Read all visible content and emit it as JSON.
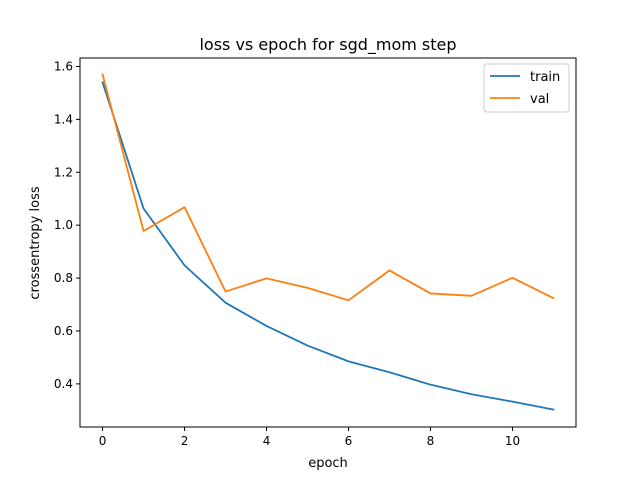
{
  "chart_data": {
    "type": "line",
    "title": "loss vs epoch for sgd_mom step",
    "xlabel": "epoch",
    "ylabel": "crossentropy loss",
    "x": [
      0,
      1,
      2,
      3,
      4,
      5,
      6,
      7,
      8,
      9,
      10,
      11
    ],
    "xlim": [
      -0.55,
      11.55
    ],
    "ylim": [
      0.237,
      1.632
    ],
    "xticks": [
      0,
      2,
      4,
      6,
      8,
      10
    ],
    "yticks": [
      0.4,
      0.6,
      0.8,
      1.0,
      1.2,
      1.4,
      1.6
    ],
    "ytick_labels": [
      "0.4",
      "0.6",
      "0.8",
      "1.0",
      "1.2",
      "1.4",
      "1.6"
    ],
    "grid": false,
    "legend_position": "top-right",
    "series": [
      {
        "name": "train",
        "color": "#1f77b4",
        "values": [
          1.54,
          1.063,
          0.848,
          0.707,
          0.619,
          0.545,
          0.485,
          0.444,
          0.397,
          0.361,
          0.333,
          0.303
        ]
      },
      {
        "name": "val",
        "color": "#ff7f0e",
        "values": [
          1.57,
          0.978,
          1.068,
          0.749,
          0.799,
          0.763,
          0.716,
          0.829,
          0.742,
          0.733,
          0.801,
          0.724
        ]
      }
    ]
  }
}
